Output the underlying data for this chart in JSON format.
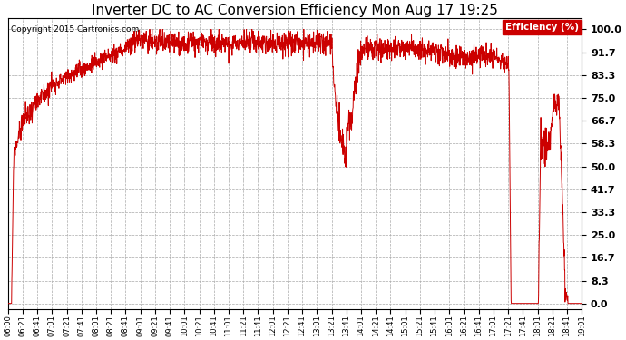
{
  "title": "Inverter DC to AC Conversion Efficiency Mon Aug 17 19:25",
  "copyright": "Copyright 2015 Cartronics.com",
  "legend_label": "Efficiency (%)",
  "legend_bg": "#cc0000",
  "legend_fg": "#ffffff",
  "line_color": "#cc0000",
  "bg_color": "#ffffff",
  "grid_color": "#aaaaaa",
  "title_fontsize": 11,
  "ylabel_right": [
    "100.0",
    "91.7",
    "83.3",
    "75.0",
    "66.7",
    "58.3",
    "50.0",
    "41.7",
    "33.3",
    "25.0",
    "16.7",
    "8.3",
    "0.0"
  ],
  "yticks": [
    100.0,
    91.7,
    83.3,
    75.0,
    66.7,
    58.3,
    50.0,
    41.7,
    33.3,
    25.0,
    16.7,
    8.3,
    0.0
  ],
  "ylim": [
    -2,
    104
  ],
  "x_tick_labels": [
    "06:00",
    "06:21",
    "06:41",
    "07:01",
    "07:21",
    "07:41",
    "08:01",
    "08:21",
    "08:41",
    "09:01",
    "09:21",
    "09:41",
    "10:01",
    "10:21",
    "10:41",
    "11:01",
    "11:21",
    "11:41",
    "12:01",
    "12:21",
    "12:41",
    "13:01",
    "13:21",
    "13:41",
    "14:01",
    "14:21",
    "14:41",
    "15:01",
    "15:21",
    "15:41",
    "16:01",
    "16:21",
    "16:41",
    "17:01",
    "17:21",
    "17:41",
    "18:01",
    "18:21",
    "18:41",
    "19:01"
  ]
}
